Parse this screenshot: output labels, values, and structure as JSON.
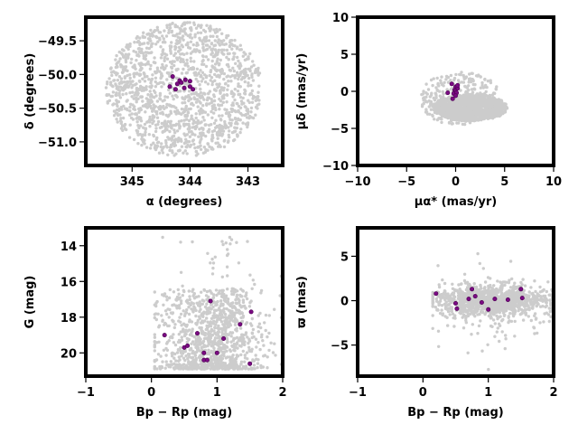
{
  "colors": {
    "field": "#cccccc",
    "members": "#7a0a82",
    "member_edge": "#4a004f",
    "axes": "#000000",
    "background": "#ffffff"
  },
  "chart_data": [
    {
      "id": "sky",
      "type": "scatter",
      "xlabel": "α (degrees)",
      "ylabel": "δ (degrees)",
      "xlim": [
        345.8,
        342.4
      ],
      "ylim": [
        -51.35,
        -49.15
      ],
      "xticks": [
        345,
        344,
        343
      ],
      "xtick_labels": [
        "345",
        "344",
        "343"
      ],
      "yticks": [
        -49.5,
        -50.0,
        -50.5,
        -51.0
      ],
      "ytick_labels": [
        "−49.5",
        "−50.0",
        "−50.5",
        "−51.0"
      ],
      "grid": false,
      "field": {
        "shape": "ellipse",
        "center": [
          344.1,
          -50.22
        ],
        "radius_x": 1.35,
        "radius_y": 1.0,
        "count": 1500
      },
      "members": [
        [
          344.3,
          -50.03
        ],
        [
          344.22,
          -50.14
        ],
        [
          344.18,
          -50.09
        ],
        [
          344.15,
          -50.12
        ],
        [
          344.08,
          -50.08
        ],
        [
          344.0,
          -50.1
        ],
        [
          344.0,
          -50.18
        ],
        [
          343.95,
          -50.22
        ],
        [
          344.1,
          -50.2
        ],
        [
          344.35,
          -50.18
        ],
        [
          344.25,
          -50.22
        ]
      ]
    },
    {
      "id": "proper-motion",
      "type": "scatter",
      "xlabel": "μα* (mas/yr)",
      "ylabel": "μδ (mas/yr)",
      "xlim": [
        -10,
        10
      ],
      "ylim": [
        -10,
        10
      ],
      "xticks": [
        -10,
        -5,
        0,
        5,
        10
      ],
      "xtick_labels": [
        "−10",
        "−5",
        "0",
        "5",
        "10"
      ],
      "yticks": [
        10,
        5,
        0,
        -5,
        -10
      ],
      "ytick_labels": [
        "10",
        "5",
        "0",
        "−5",
        "−10"
      ],
      "grid": false,
      "field": {
        "shape": "blob",
        "center": [
          1.5,
          -2.2
        ],
        "radius_x": 3.8,
        "radius_y": 1.8,
        "count": 1500
      },
      "members": [
        [
          -0.4,
          1.0
        ],
        [
          0.0,
          0.6
        ],
        [
          0.2,
          0.4
        ],
        [
          -0.1,
          0.2
        ],
        [
          0.0,
          0.0
        ],
        [
          -0.2,
          -0.3
        ],
        [
          0.1,
          -0.2
        ],
        [
          0.0,
          -0.6
        ],
        [
          -0.8,
          -0.2
        ],
        [
          -0.3,
          -1.0
        ],
        [
          0.2,
          0.8
        ]
      ]
    },
    {
      "id": "cmd-g",
      "type": "scatter",
      "xlabel": "Bp − Rp (mag)",
      "ylabel": "G (mag)",
      "xlim": [
        -1,
        2
      ],
      "ylim": [
        21.3,
        13.0
      ],
      "xticks": [
        -1,
        0,
        1,
        2
      ],
      "xtick_labels": [
        "−1",
        "0",
        "1",
        "2"
      ],
      "yticks": [
        20,
        18,
        16,
        14
      ],
      "ytick_labels": [
        "20",
        "18",
        "16",
        "14"
      ],
      "grid": false,
      "field": {
        "shape": "cmd",
        "count": 1200
      },
      "members": [
        [
          0.2,
          19.0
        ],
        [
          0.5,
          19.7
        ],
        [
          0.55,
          19.6
        ],
        [
          0.7,
          18.9
        ],
        [
          0.8,
          20.4
        ],
        [
          0.85,
          20.4
        ],
        [
          0.8,
          20.0
        ],
        [
          0.9,
          17.1
        ],
        [
          1.0,
          20.0
        ],
        [
          1.1,
          19.2
        ],
        [
          1.35,
          18.4
        ],
        [
          1.5,
          20.6
        ],
        [
          1.52,
          17.7
        ]
      ]
    },
    {
      "id": "cmd-parallax",
      "type": "scatter",
      "xlabel": "Bp − Rp (mag)",
      "ylabel": "ϖ (mas)",
      "xlim": [
        -1,
        2
      ],
      "ylim": [
        -8.5,
        8.2
      ],
      "xticks": [
        -1,
        0,
        1,
        2
      ],
      "xtick_labels": [
        "−1",
        "0",
        "1",
        "2"
      ],
      "yticks": [
        5,
        0,
        -5
      ],
      "ytick_labels": [
        "5",
        "0",
        "−5"
      ],
      "grid": false,
      "field": {
        "shape": "band",
        "count": 1200
      },
      "members": [
        [
          0.2,
          0.8
        ],
        [
          0.5,
          -0.3
        ],
        [
          0.52,
          -0.9
        ],
        [
          0.7,
          0.2
        ],
        [
          0.75,
          1.3
        ],
        [
          0.8,
          0.5
        ],
        [
          0.9,
          -0.2
        ],
        [
          1.0,
          -1.0
        ],
        [
          1.1,
          0.2
        ],
        [
          1.3,
          0.1
        ],
        [
          1.5,
          1.3
        ],
        [
          1.52,
          0.3
        ]
      ]
    }
  ]
}
